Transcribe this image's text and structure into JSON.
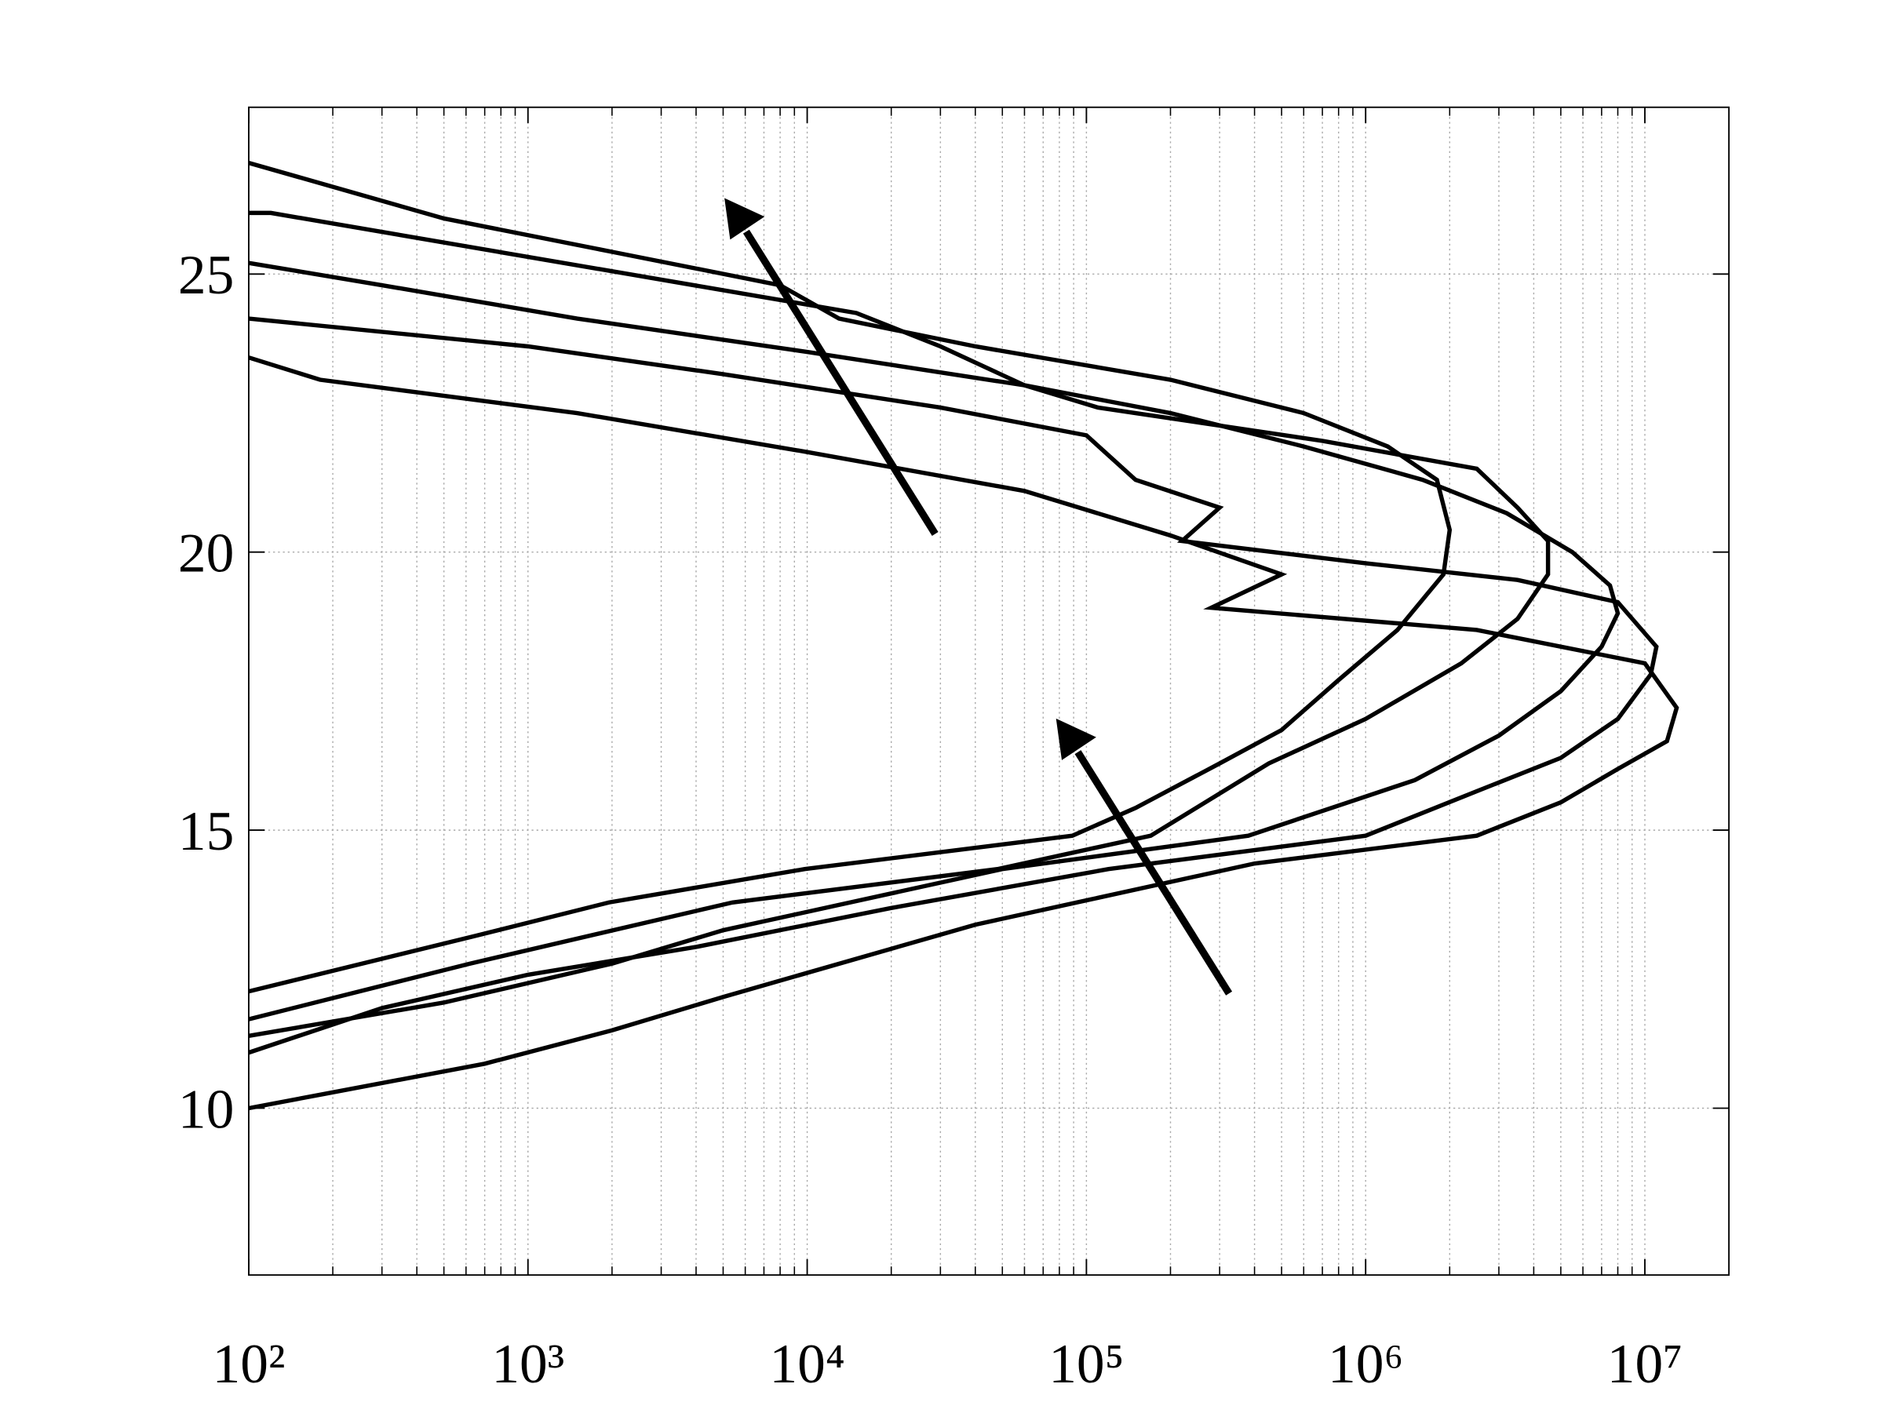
{
  "chart_data": {
    "type": "line",
    "log_x": true,
    "grid": true,
    "minor_grid": true,
    "line_width": 3.5,
    "xlim": [
      100,
      20000000
    ],
    "ylim": [
      7,
      28
    ],
    "xticks": [
      {
        "value": 100,
        "label": "10²"
      },
      {
        "value": 1000,
        "label": "10³"
      },
      {
        "value": 10000,
        "label": "10⁴"
      },
      {
        "value": 100000,
        "label": "10⁵"
      },
      {
        "value": 1000000,
        "label": "10⁶"
      },
      {
        "value": 10000000,
        "label": "10⁷"
      }
    ],
    "yticks": [
      10,
      15,
      20,
      25
    ],
    "series": [
      {
        "color": "#000000",
        "x": [
          100,
          500,
          2000,
          8000,
          13000,
          40000,
          200000,
          600000,
          1200000,
          1800000,
          2000000,
          1900000,
          1300000,
          800000,
          500000,
          300000,
          150000,
          89000,
          9800,
          1950,
          650,
          100
        ],
        "y": [
          27.0,
          26.0,
          25.4,
          24.8,
          24.2,
          23.7,
          23.1,
          22.5,
          21.9,
          21.3,
          20.4,
          19.6,
          18.6,
          17.7,
          16.8,
          16.2,
          15.4,
          14.9,
          14.3,
          13.7,
          13.1,
          12.1
        ]
      },
      {
        "color": "#000000",
        "x": [
          100,
          120,
          3000,
          15000,
          30000,
          60000,
          110000,
          700000,
          2500000,
          3500000,
          4500000,
          4500000,
          3500000,
          2200000,
          1000000,
          450000,
          170000,
          48000,
          5400,
          620,
          100
        ],
        "y": [
          26.1,
          26.1,
          24.9,
          24.3,
          23.7,
          23.0,
          22.6,
          22.0,
          21.5,
          20.8,
          20.2,
          19.6,
          18.8,
          18.0,
          17.0,
          16.2,
          14.9,
          14.3,
          13.7,
          12.6,
          11.6
        ]
      },
      {
        "color": "#000000",
        "x": [
          100,
          300,
          1500,
          10000,
          60000,
          200000,
          600000,
          1600000,
          3200000,
          5500000,
          7500000,
          8000000,
          7000000,
          5000000,
          3000000,
          1500000,
          380000,
          50000,
          5000,
          2000,
          500,
          100
        ],
        "y": [
          25.2,
          24.8,
          24.2,
          23.6,
          23.0,
          22.5,
          21.9,
          21.3,
          20.7,
          20.0,
          19.4,
          18.9,
          18.3,
          17.5,
          16.7,
          15.9,
          14.9,
          14.3,
          13.2,
          12.6,
          11.9,
          11.3
        ]
      },
      {
        "color": "#000000",
        "x": [
          100,
          1000,
          5000,
          30000,
          100000,
          150000,
          300000,
          220000,
          1000000,
          3500000,
          8000000,
          11000000,
          10500000,
          8000000,
          5000000,
          2500000,
          1000000,
          120000,
          20000,
          4000,
          1000,
          300,
          100
        ],
        "y": [
          24.2,
          23.7,
          23.2,
          22.6,
          22.1,
          21.3,
          20.8,
          20.2,
          19.8,
          19.5,
          19.1,
          18.3,
          17.8,
          17.0,
          16.3,
          15.7,
          14.9,
          14.3,
          13.6,
          12.9,
          12.4,
          11.8,
          11.0
        ]
      },
      {
        "color": "#000000",
        "x": [
          100,
          180,
          1500,
          10000,
          60000,
          200000,
          500000,
          280000,
          2500000,
          10000000,
          13000000,
          12000000,
          8000000,
          5000000,
          2500000,
          400000,
          40000,
          5000,
          2000,
          700,
          100
        ],
        "y": [
          23.5,
          23.1,
          22.5,
          21.8,
          21.1,
          20.3,
          19.6,
          19.0,
          18.6,
          18.0,
          17.2,
          16.6,
          16.1,
          15.5,
          14.9,
          14.4,
          13.3,
          12.0,
          11.4,
          10.8,
          10.0
        ]
      }
    ]
  }
}
